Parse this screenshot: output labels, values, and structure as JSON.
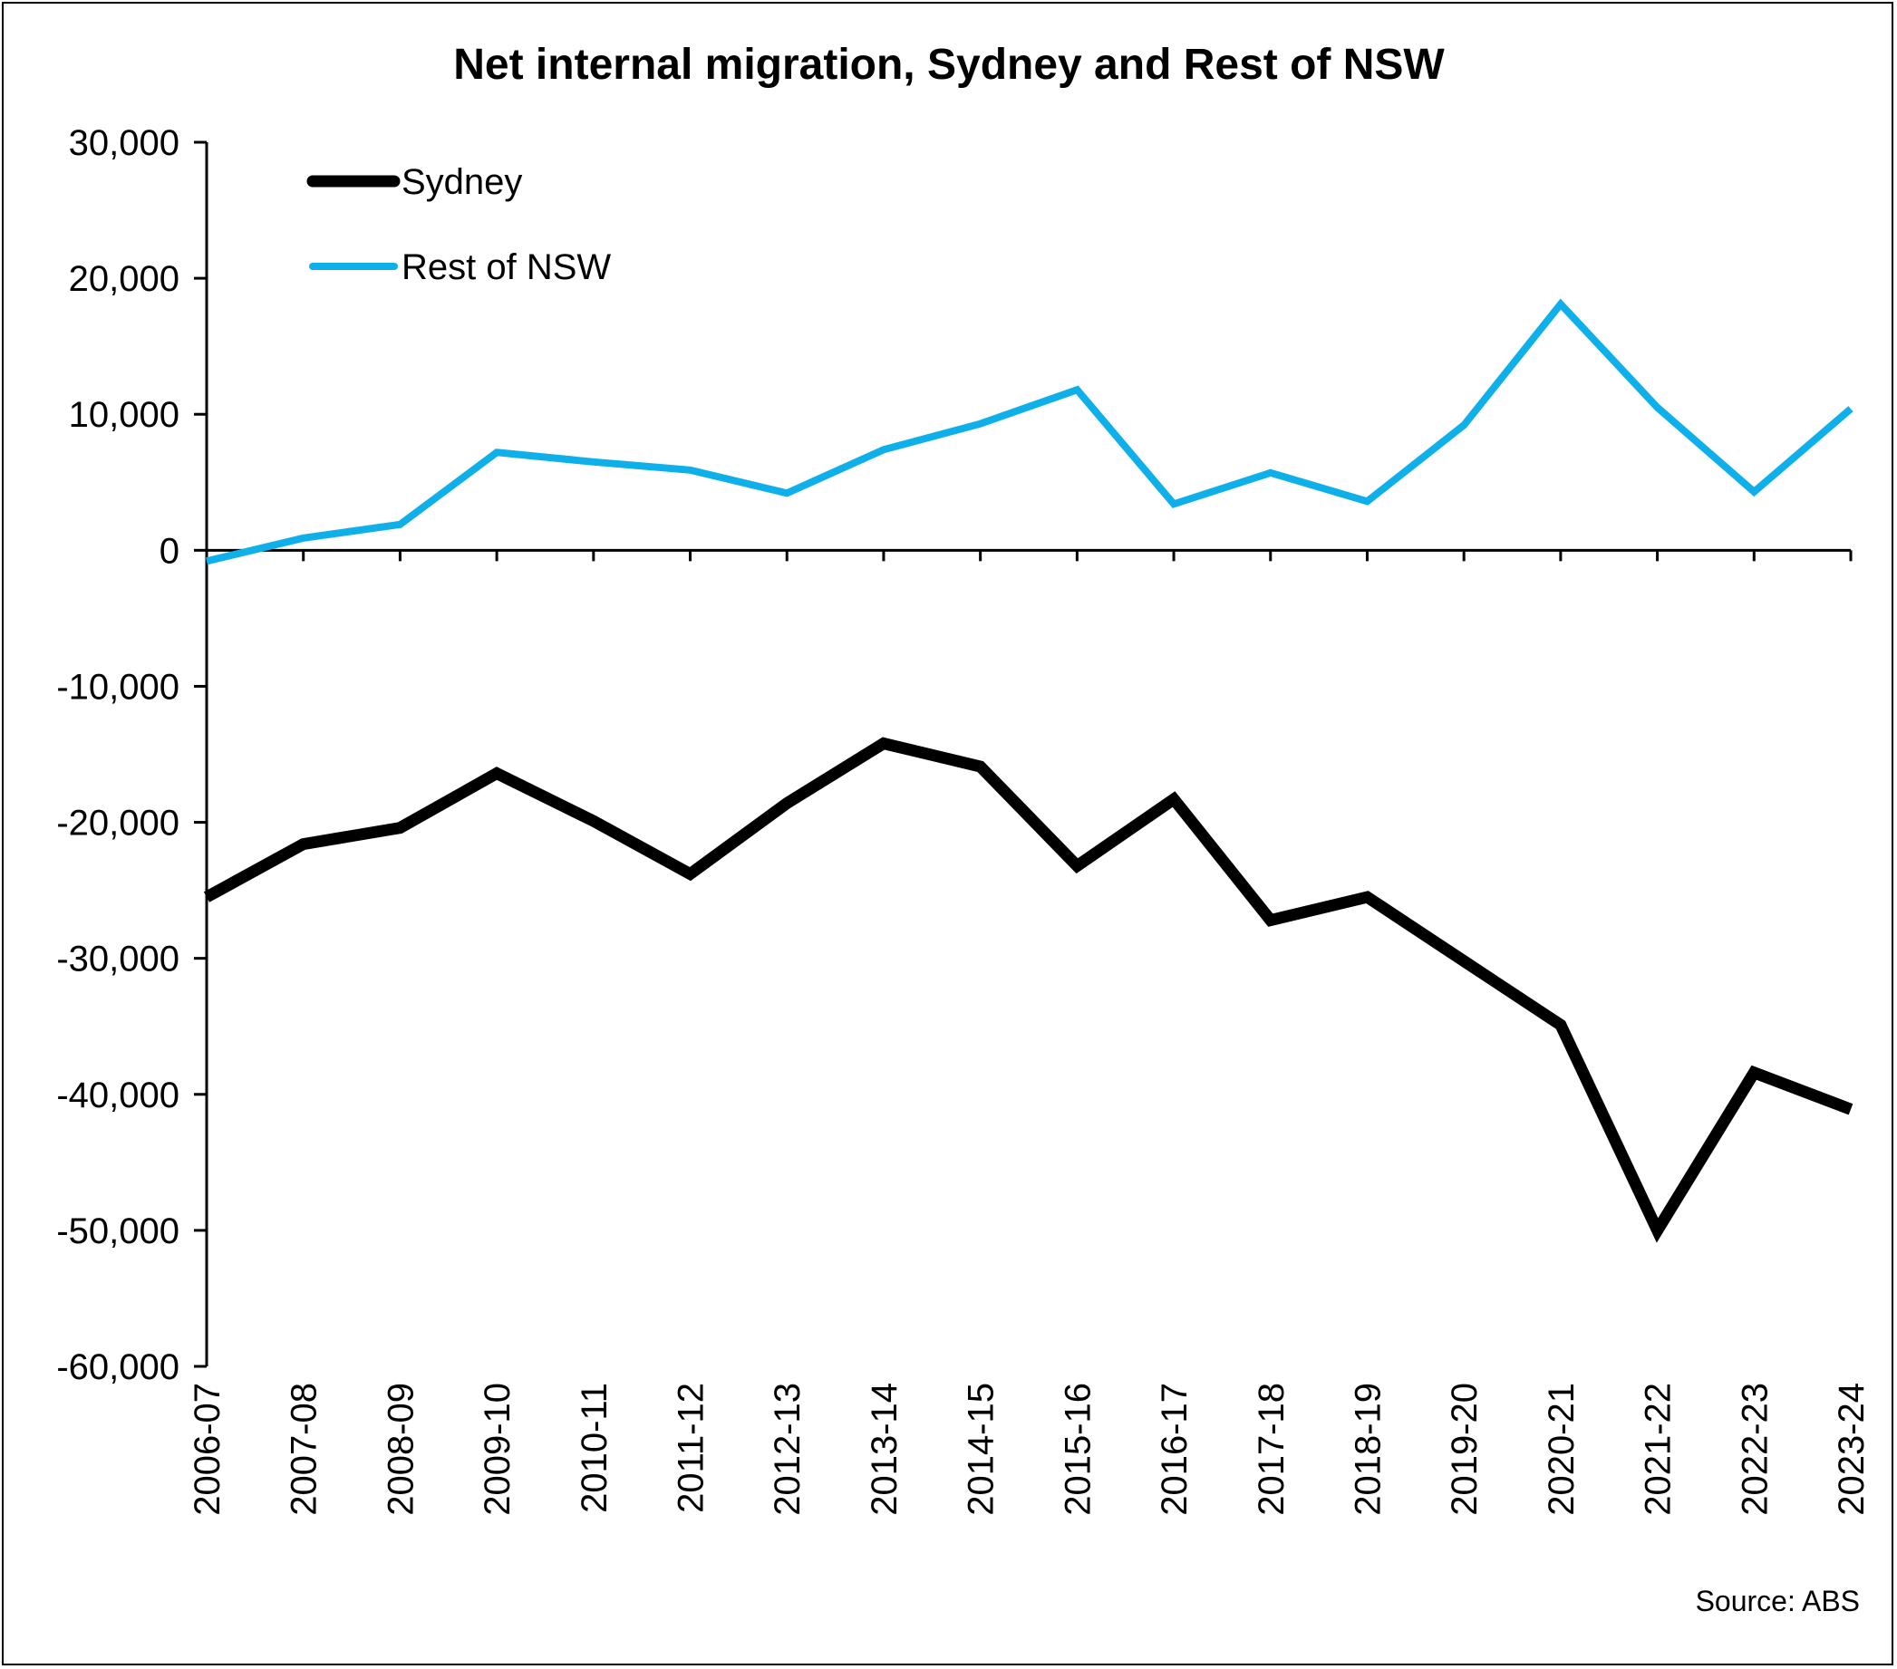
{
  "chart_data": {
    "type": "line",
    "title": "Net internal migration, Sydney and Rest of NSW",
    "xlabel": "",
    "ylabel": "",
    "categories": [
      "2006-07",
      "2007-08",
      "2008-09",
      "2009-10",
      "2010-11",
      "2011-12",
      "2012-13",
      "2013-14",
      "2014-15",
      "2015-16",
      "2016-17",
      "2017-18",
      "2018-19",
      "2019-20",
      "2020-21",
      "2021-22",
      "2022-23",
      "2023-24"
    ],
    "ylim": [
      -60000,
      30000
    ],
    "yticks": [
      30000,
      20000,
      10000,
      0,
      -10000,
      -20000,
      -30000,
      -40000,
      -50000,
      -60000
    ],
    "ytick_labels": [
      "30,000",
      "20,000",
      "10,000",
      "0",
      "-10,000",
      "-20,000",
      "-30,000",
      "-40,000",
      "-50,000",
      "-60,000"
    ],
    "grid": false,
    "legend_position": "top-left",
    "series": [
      {
        "name": "Sydney",
        "color": "#000000",
        "values": [
          -25500,
          -21600,
          -20400,
          -16400,
          -19900,
          -23800,
          -18600,
          -14200,
          -15900,
          -23200,
          -18300,
          -27200,
          -25500,
          -30200,
          -34900,
          -50000,
          -38400,
          -41100
        ]
      },
      {
        "name": "Rest of NSW",
        "color": "#0FB0EA",
        "values": [
          -800,
          900,
          1900,
          7200,
          6500,
          5900,
          4200,
          7400,
          9300,
          11800,
          3400,
          5700,
          3600,
          9200,
          18100,
          10500,
          4300,
          10400
        ]
      }
    ],
    "source": "Source: ABS"
  }
}
